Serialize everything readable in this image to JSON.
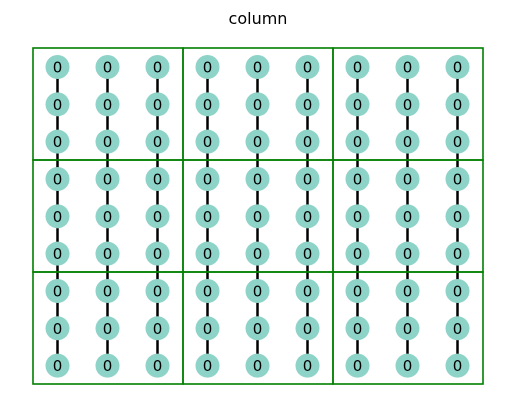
{
  "title": "column",
  "colors": {
    "node_fill": "#8dd3c7",
    "edge": "#000000",
    "block_border": "#008000",
    "text": "#000000",
    "background": "#ffffff"
  },
  "grid": {
    "block_rows": 3,
    "block_cols": 3,
    "cells_per_block": 3,
    "edges": "vertical, connecting each node to the one below within a column"
  },
  "nodes": {
    "values": [
      [
        0,
        0,
        0,
        0,
        0,
        0,
        0,
        0,
        0
      ],
      [
        0,
        0,
        0,
        0,
        0,
        0,
        0,
        0,
        0
      ],
      [
        0,
        0,
        0,
        0,
        0,
        0,
        0,
        0,
        0
      ],
      [
        0,
        0,
        0,
        0,
        0,
        0,
        0,
        0,
        0
      ],
      [
        0,
        0,
        0,
        0,
        0,
        0,
        0,
        0,
        0
      ],
      [
        0,
        0,
        0,
        0,
        0,
        0,
        0,
        0,
        0
      ],
      [
        0,
        0,
        0,
        0,
        0,
        0,
        0,
        0,
        0
      ],
      [
        0,
        0,
        0,
        0,
        0,
        0,
        0,
        0,
        0
      ],
      [
        0,
        0,
        0,
        0,
        0,
        0,
        0,
        0,
        0
      ]
    ]
  }
}
